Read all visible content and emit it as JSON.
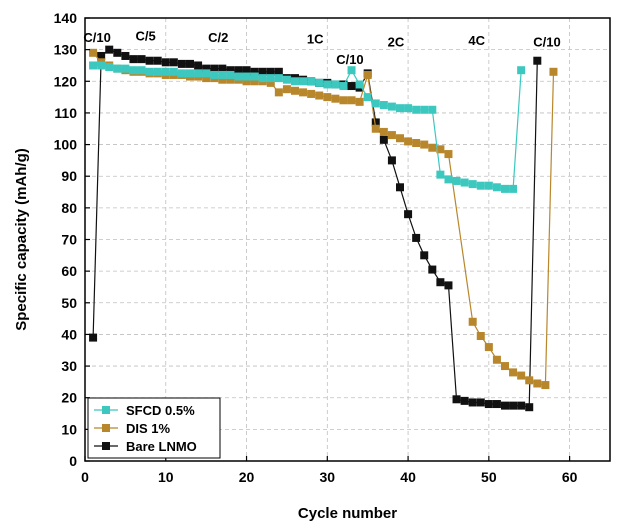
{
  "chart_data": {
    "type": "line",
    "xlabel": "Cycle number",
    "ylabel": "Specific capacity (mAh/g)",
    "xlim": [
      0,
      65
    ],
    "ylim": [
      0,
      140
    ],
    "xticks": [
      0,
      10,
      20,
      30,
      40,
      50,
      60
    ],
    "yticks": [
      0,
      10,
      20,
      30,
      40,
      50,
      60,
      70,
      80,
      90,
      100,
      110,
      120,
      130,
      140
    ],
    "xtick_labels": [
      "0",
      "10",
      "20",
      "30",
      "40",
      "50",
      "60"
    ],
    "ytick_labels": [
      "0",
      "10",
      "20",
      "30",
      "40",
      "50",
      "60",
      "70",
      "80",
      "90",
      "100",
      "110",
      "120",
      "130",
      "140"
    ],
    "grid": true,
    "legend_position": "bottom-left",
    "rate_annotations": [
      {
        "label": "C/10",
        "x": 1.5,
        "y": 134
      },
      {
        "label": "C/5",
        "x": 7.5,
        "y": 134.5
      },
      {
        "label": "C/2",
        "x": 16.5,
        "y": 134
      },
      {
        "label": "1C",
        "x": 28.5,
        "y": 133.5
      },
      {
        "label": "C/10",
        "x": 32.8,
        "y": 127
      },
      {
        "label": "2C",
        "x": 38.5,
        "y": 132.5
      },
      {
        "label": "4C",
        "x": 48.5,
        "y": 133
      },
      {
        "label": "C/10",
        "x": 57.2,
        "y": 132.5
      }
    ],
    "series": [
      {
        "name": "SFCD 0.5%",
        "color": "#3cc8bf",
        "points": [
          [
            1,
            125
          ],
          [
            2,
            125
          ],
          [
            3,
            124.5
          ],
          [
            4,
            124
          ],
          [
            5,
            124
          ],
          [
            6,
            123.5
          ],
          [
            7,
            123.5
          ],
          [
            8,
            123
          ],
          [
            9,
            123
          ],
          [
            10,
            123
          ],
          [
            11,
            123
          ],
          [
            12,
            122.5
          ],
          [
            13,
            122.5
          ],
          [
            14,
            122.5
          ],
          [
            15,
            122.5
          ],
          [
            16,
            122
          ],
          [
            17,
            122
          ],
          [
            18,
            122
          ],
          [
            19,
            121.5
          ],
          [
            20,
            121.5
          ],
          [
            21,
            121.5
          ],
          [
            22,
            121
          ],
          [
            23,
            121
          ],
          [
            24,
            121
          ],
          [
            25,
            120.5
          ],
          [
            26,
            120
          ],
          [
            27,
            120
          ],
          [
            28,
            120
          ],
          [
            29,
            119.5
          ],
          [
            30,
            119
          ],
          [
            31,
            119
          ],
          [
            32,
            118.5
          ],
          [
            33,
            123.5
          ],
          [
            34,
            119
          ],
          [
            35,
            115
          ],
          [
            36,
            113
          ],
          [
            37,
            112.5
          ],
          [
            38,
            112
          ],
          [
            39,
            111.5
          ],
          [
            40,
            111.5
          ],
          [
            41,
            111
          ],
          [
            42,
            111
          ],
          [
            43,
            111
          ],
          [
            44,
            90.5
          ],
          [
            45,
            89
          ],
          [
            46,
            88.5
          ],
          [
            47,
            88
          ],
          [
            48,
            87.5
          ],
          [
            49,
            87
          ],
          [
            50,
            87
          ],
          [
            51,
            86.5
          ],
          [
            52,
            86
          ],
          [
            53,
            86
          ],
          [
            54,
            123.5
          ]
        ]
      },
      {
        "name": "DIS 1%",
        "color": "#b8862b",
        "points": [
          [
            1,
            129
          ],
          [
            2,
            126
          ],
          [
            3,
            125
          ],
          [
            4,
            124
          ],
          [
            5,
            123.5
          ],
          [
            6,
            123
          ],
          [
            7,
            123
          ],
          [
            8,
            122.5
          ],
          [
            9,
            122.5
          ],
          [
            10,
            122
          ],
          [
            11,
            122
          ],
          [
            12,
            122
          ],
          [
            13,
            121.5
          ],
          [
            14,
            121.5
          ],
          [
            15,
            121
          ],
          [
            16,
            121
          ],
          [
            17,
            120.5
          ],
          [
            18,
            120.5
          ],
          [
            19,
            120.5
          ],
          [
            20,
            120
          ],
          [
            21,
            120
          ],
          [
            22,
            120
          ],
          [
            23,
            119.5
          ],
          [
            24,
            116.5
          ],
          [
            25,
            117.5
          ],
          [
            26,
            117
          ],
          [
            27,
            116.5
          ],
          [
            28,
            116
          ],
          [
            29,
            115.5
          ],
          [
            30,
            115
          ],
          [
            31,
            114.5
          ],
          [
            32,
            114
          ],
          [
            33,
            114
          ],
          [
            34,
            113.5
          ],
          [
            35,
            122
          ],
          [
            36,
            105
          ],
          [
            37,
            104
          ],
          [
            38,
            103
          ],
          [
            39,
            102
          ],
          [
            40,
            101
          ],
          [
            41,
            100.5
          ],
          [
            42,
            100
          ],
          [
            43,
            99
          ],
          [
            44,
            98.5
          ],
          [
            45,
            97
          ],
          [
            48,
            44
          ],
          [
            49,
            39.5
          ],
          [
            50,
            36
          ],
          [
            51,
            32
          ],
          [
            52,
            30
          ],
          [
            53,
            28
          ],
          [
            54,
            27
          ],
          [
            55,
            25.5
          ],
          [
            56,
            24.5
          ],
          [
            57,
            24
          ],
          [
            58,
            123
          ]
        ]
      },
      {
        "name": "Bare LNMO",
        "color": "#111111",
        "points": [
          [
            1,
            39
          ],
          [
            2,
            128
          ],
          [
            3,
            130
          ],
          [
            4,
            129
          ],
          [
            5,
            128
          ],
          [
            6,
            127
          ],
          [
            7,
            127
          ],
          [
            8,
            126.5
          ],
          [
            9,
            126.5
          ],
          [
            10,
            126
          ],
          [
            11,
            126
          ],
          [
            12,
            125.5
          ],
          [
            13,
            125.5
          ],
          [
            14,
            125
          ],
          [
            15,
            124
          ],
          [
            16,
            124
          ],
          [
            17,
            124
          ],
          [
            18,
            123.5
          ],
          [
            19,
            123.5
          ],
          [
            20,
            123.5
          ],
          [
            21,
            123
          ],
          [
            22,
            123
          ],
          [
            23,
            123
          ],
          [
            24,
            123
          ],
          [
            25,
            121
          ],
          [
            26,
            121
          ],
          [
            27,
            120.5
          ],
          [
            28,
            120
          ],
          [
            29,
            119.5
          ],
          [
            30,
            119.5
          ],
          [
            31,
            119
          ],
          [
            32,
            119
          ],
          [
            33,
            118.5
          ],
          [
            34,
            118
          ],
          [
            35,
            122.5
          ],
          [
            36,
            107
          ],
          [
            37,
            101.5
          ],
          [
            38,
            95
          ],
          [
            39,
            86.5
          ],
          [
            40,
            78
          ],
          [
            41,
            70.5
          ],
          [
            42,
            65
          ],
          [
            43,
            60.5
          ],
          [
            44,
            56.5
          ],
          [
            45,
            55.5
          ],
          [
            46,
            19.5
          ],
          [
            47,
            19
          ],
          [
            48,
            18.5
          ],
          [
            49,
            18.5
          ],
          [
            50,
            18
          ],
          [
            51,
            18
          ],
          [
            52,
            17.5
          ],
          [
            53,
            17.5
          ],
          [
            54,
            17.5
          ],
          [
            55,
            17
          ],
          [
            56,
            126.5
          ]
        ]
      }
    ]
  }
}
